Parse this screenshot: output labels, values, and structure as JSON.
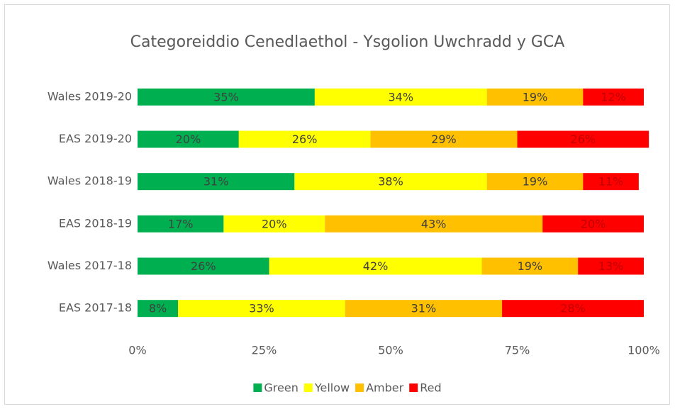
{
  "chart_data": {
    "type": "stacked_barh",
    "title": "Categoreiddio Cenedlaethol - Ysgolion Uwchradd y GCA",
    "categories": [
      "Wales 2019-20",
      "EAS 2019-20",
      "Wales 2018-19",
      "EAS 2018-19",
      "Wales 2017-18",
      "EAS 2017-18"
    ],
    "series": [
      {
        "name": "Green",
        "color": "#00b050",
        "label_color": "#404040",
        "values": [
          35,
          20,
          31,
          17,
          26,
          8
        ],
        "value_labels": [
          "35%",
          "20%",
          "31%",
          "17%",
          "26%",
          "8%"
        ]
      },
      {
        "name": "Yellow",
        "color": "#ffff00",
        "label_color": "#404040",
        "values": [
          34,
          26,
          38,
          20,
          42,
          33
        ],
        "value_labels": [
          "34%",
          "26%",
          "38%",
          "20%",
          "42%",
          "33%"
        ]
      },
      {
        "name": "Amber",
        "color": "#ffc000",
        "label_color": "#404040",
        "values": [
          19,
          29,
          19,
          43,
          19,
          31
        ],
        "value_labels": [
          "19%",
          "29%",
          "19%",
          "43%",
          "19%",
          "31%"
        ]
      },
      {
        "name": "Red",
        "color": "#ff0000",
        "label_color": "#c00000",
        "values": [
          12,
          26,
          11,
          20,
          13,
          28
        ],
        "value_labels": [
          "12%",
          "26%",
          "11%",
          "20%",
          "13%",
          "28%"
        ]
      }
    ],
    "xlim": [
      0,
      100
    ],
    "xticks": [
      {
        "value": 0,
        "label": "0%"
      },
      {
        "value": 25,
        "label": "25%"
      },
      {
        "value": 50,
        "label": "50%"
      },
      {
        "value": 75,
        "label": "75%"
      },
      {
        "value": 100,
        "label": "100%"
      }
    ],
    "legend": "bottom"
  }
}
